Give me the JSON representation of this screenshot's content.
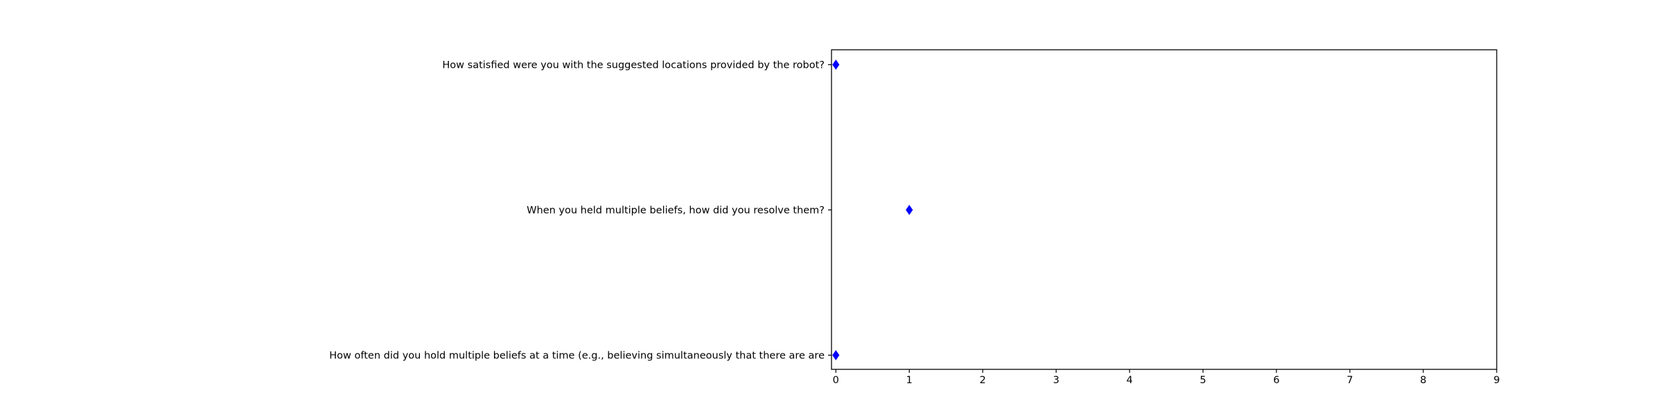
{
  "chart_data": {
    "type": "scatter",
    "title": "",
    "xlabel": "",
    "ylabel": "",
    "xlim": [
      0,
      9
    ],
    "xticks": [
      0,
      1,
      2,
      3,
      4,
      5,
      6,
      7,
      8,
      9
    ],
    "grid": false,
    "legend": "none",
    "marker": "diamond",
    "marker_color": "#0000ff",
    "categories": [
      "How satisfied were you with the suggested locations provided by the robot?",
      "When you held multiple beliefs, how did you resolve them?",
      "How often did you hold multiple beliefs at a time (e.g., believing simultaneously that there are are"
    ],
    "values": [
      0,
      1,
      0
    ]
  }
}
